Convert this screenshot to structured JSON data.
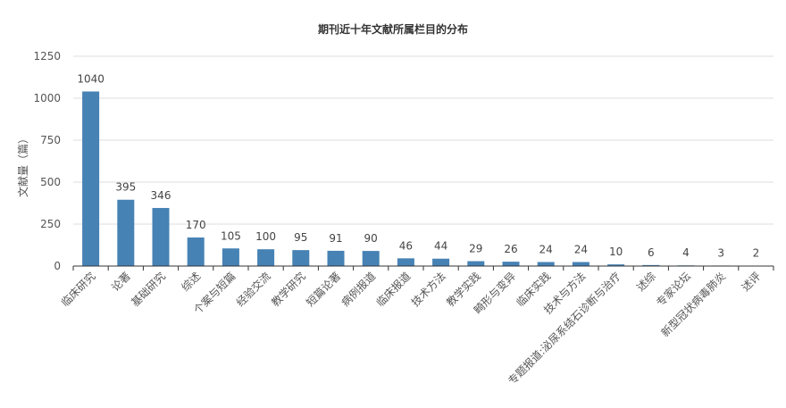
{
  "chart_data": {
    "type": "bar",
    "title": "期刊近十年文献所属栏目的分布",
    "ylabel": "文献量（篇）",
    "xlabel": "",
    "ylim": [
      0,
      1250
    ],
    "yticks": [
      0,
      250,
      500,
      750,
      1000,
      1250
    ],
    "grid": true,
    "legend": "none",
    "bar_color": "#4682b4",
    "categories": [
      "临床研究",
      "论著",
      "基础研究",
      "综述",
      "个案与短篇",
      "经验交流",
      "教学研究",
      "短篇论著",
      "病例报道",
      "临床报道",
      "技术方法",
      "教学实践",
      "畸形与变异",
      "临床实践",
      "技术与方法",
      "专题报道:泌尿系结石诊断与治疗",
      "述综",
      "专家论坛",
      "新型冠状病毒肺炎",
      "述评"
    ],
    "values": [
      1040,
      395,
      346,
      170,
      105,
      100,
      95,
      91,
      90,
      46,
      44,
      29,
      26,
      24,
      24,
      10,
      6,
      4,
      3,
      2
    ]
  }
}
